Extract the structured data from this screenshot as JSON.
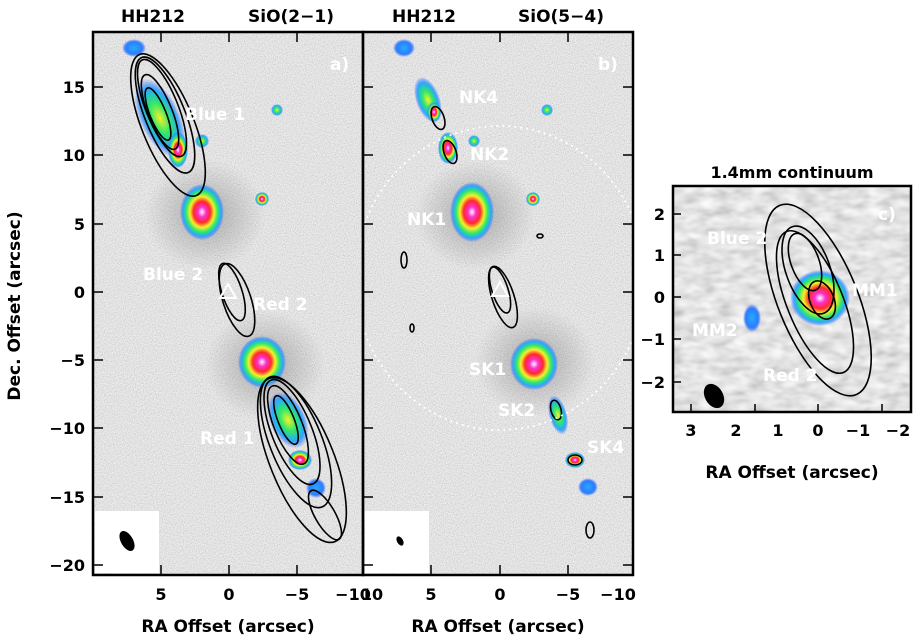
{
  "panel_a": {
    "source": "HH212",
    "line": "SiO(2−1)",
    "tag": "a)",
    "labels": {
      "blue1": "Blue 1",
      "blue2": "Blue 2",
      "red1": "Red 1",
      "red2": "Red 2"
    },
    "x_ticks": [
      "5",
      "0",
      "−5",
      "−10"
    ],
    "y_ticks": [
      "15",
      "10",
      "5",
      "0",
      "−5",
      "−10",
      "−15",
      "−20"
    ],
    "xlabel": "RA Offset (arcsec)",
    "ylabel": "Dec. Offset (arcsec)"
  },
  "panel_b": {
    "source": "HH212",
    "line": "SiO(5−4)",
    "tag": "b)",
    "labels": {
      "nk4": "NK4",
      "nk2": "NK2",
      "nk1": "NK1",
      "sk1": "SK1",
      "sk2": "SK2",
      "sk4": "SK4"
    },
    "x_ticks": [
      "10",
      "5",
      "0",
      "−5",
      "−10"
    ],
    "xlabel": "RA Offset (arcsec)"
  },
  "panel_c": {
    "title": "1.4mm continuum",
    "tag": "c)",
    "labels": {
      "blue2": "Blue 2",
      "red2": "Red 2",
      "mm1": "MM1",
      "mm2": "MM2"
    },
    "x_ticks": [
      "3",
      "2",
      "1",
      "0",
      "−1",
      "−2"
    ],
    "y_ticks": [
      "2",
      "1",
      "0",
      "−1",
      "−2"
    ],
    "xlabel": "RA Offset (arcsec)"
  }
}
